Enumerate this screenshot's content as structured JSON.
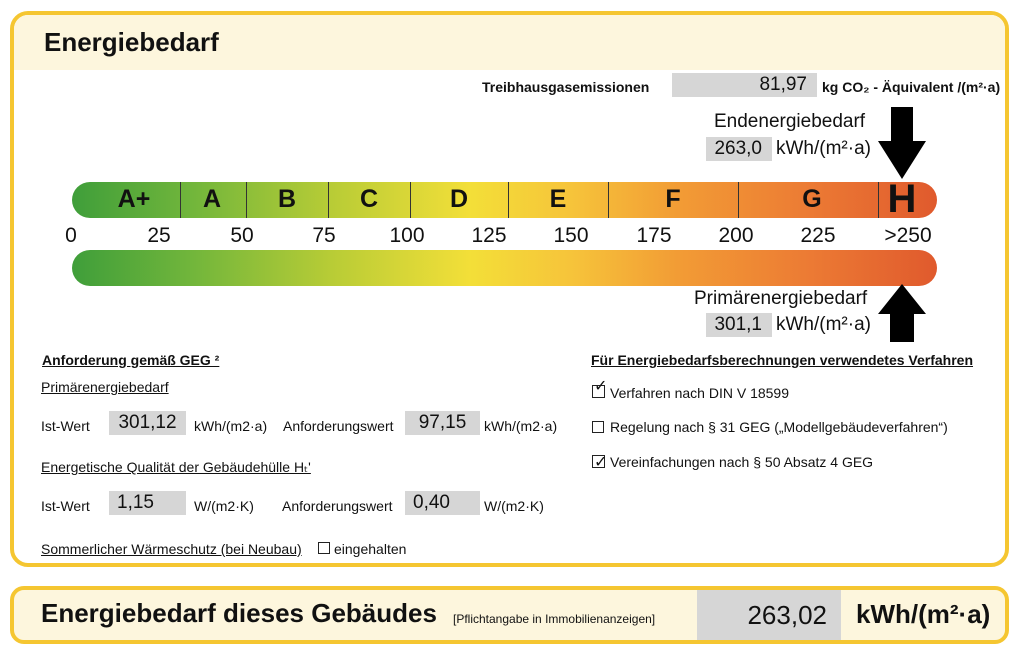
{
  "card": {
    "title": "Energiebedarf"
  },
  "emissions": {
    "label": "Treibhausgasemissionen",
    "value": "81,97",
    "unit": "kg CO₂ - Äquivalent /(m²·a)"
  },
  "end_energy": {
    "label": "Endenergiebedarf",
    "value": "263,0",
    "unit": "kWh/(m²·a)"
  },
  "primary_energy": {
    "label": "Primärenergiebedarf",
    "value": "301,1",
    "unit": "kWh/(m²·a)"
  },
  "scale": {
    "classes": [
      "A+",
      "A",
      "B",
      "C",
      "D",
      "E",
      "F",
      "G",
      "H"
    ],
    "active_class": "H",
    "ticks": [
      "0",
      "25",
      "50",
      "75",
      "100",
      "125",
      "150",
      "175",
      "200",
      "225",
      ">250"
    ]
  },
  "requirements": {
    "heading": "Anforderung gemäß GEG ²",
    "primary_heading": "Primärenergiebedarf",
    "ist_label": "Ist-Wert",
    "anf_label": "Anforderungswert",
    "primary_ist": "301,12",
    "primary_ist_unit": "kWh/(m2·a)",
    "primary_anf": "97,15",
    "primary_anf_unit": "kWh/(m2·a)",
    "envelope_heading": "Energetische Qualität der Gebäudehülle Hₜ'",
    "envelope_ist": "1,15",
    "envelope_ist_unit": "W/(m2·K)",
    "envelope_anf": "0,40",
    "envelope_anf_unit": "W/(m2·K)",
    "summer_heading": "Sommerlicher Wärmeschutz (bei Neubau)",
    "summer_status": "eingehalten"
  },
  "methods": {
    "heading": "Für Energiebedarfsberechnungen verwendetes Verfahren",
    "items": [
      {
        "label": "Verfahren nach DIN V 18599",
        "checked": true
      },
      {
        "label": "Regelung nach § 31 GEG („Modellgebäudeverfahren“)",
        "checked": false
      },
      {
        "label": "Vereinfachungen nach § 50 Absatz 4 GEG",
        "checked": true
      }
    ]
  },
  "summary": {
    "title": "Energiebedarf dieses Gebäudes",
    "note": "[Pflichtangabe in Immobilienanzeigen]",
    "value": "263,02",
    "unit": "kWh/(m²·a)"
  }
}
